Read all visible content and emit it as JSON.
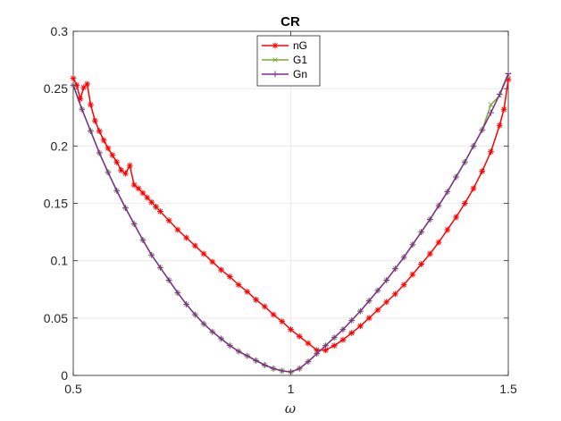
{
  "chart_data": {
    "type": "line",
    "title": "CR",
    "xlabel": "ω",
    "ylabel": "",
    "xlim": [
      0.5,
      1.5
    ],
    "ylim": [
      0,
      0.3
    ],
    "xticks": [
      "0.5",
      "1",
      "1.5"
    ],
    "yticks": [
      "0",
      "0.05",
      "0.1",
      "0.15",
      "0.2",
      "0.25",
      "0.3"
    ],
    "grid": true,
    "legend_position": "top-center",
    "series": [
      {
        "name": "nG",
        "color": "#ff0000",
        "marker": "asterisk",
        "points": [
          [
            0.5,
            0.259
          ],
          [
            0.508,
            0.253
          ],
          [
            0.516,
            0.241
          ],
          [
            0.524,
            0.251
          ],
          [
            0.532,
            0.254
          ],
          [
            0.54,
            0.236
          ],
          [
            0.55,
            0.222
          ],
          [
            0.56,
            0.213
          ],
          [
            0.57,
            0.205
          ],
          [
            0.58,
            0.198
          ],
          [
            0.59,
            0.192
          ],
          [
            0.6,
            0.186
          ],
          [
            0.61,
            0.179
          ],
          [
            0.62,
            0.176
          ],
          [
            0.63,
            0.183
          ],
          [
            0.64,
            0.166
          ],
          [
            0.65,
            0.163
          ],
          [
            0.66,
            0.159
          ],
          [
            0.67,
            0.155
          ],
          [
            0.68,
            0.151
          ],
          [
            0.69,
            0.147
          ],
          [
            0.7,
            0.143
          ],
          [
            0.72,
            0.135
          ],
          [
            0.74,
            0.127
          ],
          [
            0.76,
            0.12
          ],
          [
            0.78,
            0.113
          ],
          [
            0.8,
            0.106
          ],
          [
            0.82,
            0.099
          ],
          [
            0.84,
            0.092
          ],
          [
            0.86,
            0.086
          ],
          [
            0.88,
            0.079
          ],
          [
            0.9,
            0.073
          ],
          [
            0.92,
            0.066
          ],
          [
            0.94,
            0.06
          ],
          [
            0.96,
            0.053
          ],
          [
            0.98,
            0.047
          ],
          [
            1.0,
            0.04
          ],
          [
            1.02,
            0.034
          ],
          [
            1.04,
            0.028
          ],
          [
            1.06,
            0.022
          ],
          [
            1.08,
            0.022
          ],
          [
            1.1,
            0.026
          ],
          [
            1.12,
            0.031
          ],
          [
            1.14,
            0.037
          ],
          [
            1.16,
            0.043
          ],
          [
            1.18,
            0.05
          ],
          [
            1.2,
            0.057
          ],
          [
            1.22,
            0.064
          ],
          [
            1.24,
            0.071
          ],
          [
            1.26,
            0.079
          ],
          [
            1.28,
            0.088
          ],
          [
            1.3,
            0.097
          ],
          [
            1.32,
            0.106
          ],
          [
            1.34,
            0.116
          ],
          [
            1.36,
            0.127
          ],
          [
            1.38,
            0.138
          ],
          [
            1.4,
            0.15
          ],
          [
            1.42,
            0.163
          ],
          [
            1.44,
            0.178
          ],
          [
            1.46,
            0.195
          ],
          [
            1.48,
            0.218
          ],
          [
            1.49,
            0.232
          ],
          [
            1.5,
            0.258
          ]
        ]
      },
      {
        "name": "G1",
        "color": "#77ac30",
        "marker": "cross",
        "points": [
          [
            0.5,
            0.253
          ],
          [
            0.52,
            0.232
          ],
          [
            0.54,
            0.213
          ],
          [
            0.56,
            0.194
          ],
          [
            0.58,
            0.177
          ],
          [
            0.6,
            0.161
          ],
          [
            0.62,
            0.146
          ],
          [
            0.64,
            0.132
          ],
          [
            0.66,
            0.118
          ],
          [
            0.68,
            0.105
          ],
          [
            0.7,
            0.094
          ],
          [
            0.72,
            0.083
          ],
          [
            0.74,
            0.072
          ],
          [
            0.76,
            0.062
          ],
          [
            0.78,
            0.053
          ],
          [
            0.8,
            0.045
          ],
          [
            0.82,
            0.038
          ],
          [
            0.84,
            0.032
          ],
          [
            0.86,
            0.026
          ],
          [
            0.88,
            0.021
          ],
          [
            0.9,
            0.017
          ],
          [
            0.92,
            0.013
          ],
          [
            0.94,
            0.009
          ],
          [
            0.96,
            0.006
          ],
          [
            0.98,
            0.004
          ],
          [
            1.0,
            0.003
          ],
          [
            1.02,
            0.006
          ],
          [
            1.04,
            0.012
          ],
          [
            1.06,
            0.019
          ],
          [
            1.08,
            0.026
          ],
          [
            1.1,
            0.033
          ],
          [
            1.12,
            0.04
          ],
          [
            1.14,
            0.048
          ],
          [
            1.16,
            0.056
          ],
          [
            1.18,
            0.065
          ],
          [
            1.2,
            0.074
          ],
          [
            1.22,
            0.083
          ],
          [
            1.24,
            0.093
          ],
          [
            1.26,
            0.103
          ],
          [
            1.28,
            0.114
          ],
          [
            1.3,
            0.125
          ],
          [
            1.32,
            0.136
          ],
          [
            1.34,
            0.148
          ],
          [
            1.36,
            0.16
          ],
          [
            1.38,
            0.173
          ],
          [
            1.4,
            0.186
          ],
          [
            1.42,
            0.2
          ],
          [
            1.44,
            0.214
          ],
          [
            1.46,
            0.236
          ],
          [
            1.48,
            0.244
          ],
          [
            1.5,
            0.262
          ]
        ]
      },
      {
        "name": "Gn",
        "color": "#7e2f8e",
        "marker": "plus",
        "points": [
          [
            0.5,
            0.253
          ],
          [
            0.52,
            0.232
          ],
          [
            0.54,
            0.213
          ],
          [
            0.56,
            0.194
          ],
          [
            0.58,
            0.177
          ],
          [
            0.6,
            0.161
          ],
          [
            0.62,
            0.146
          ],
          [
            0.64,
            0.132
          ],
          [
            0.66,
            0.118
          ],
          [
            0.68,
            0.105
          ],
          [
            0.7,
            0.094
          ],
          [
            0.72,
            0.083
          ],
          [
            0.74,
            0.072
          ],
          [
            0.76,
            0.062
          ],
          [
            0.78,
            0.053
          ],
          [
            0.8,
            0.045
          ],
          [
            0.82,
            0.038
          ],
          [
            0.84,
            0.032
          ],
          [
            0.86,
            0.026
          ],
          [
            0.88,
            0.021
          ],
          [
            0.9,
            0.017
          ],
          [
            0.92,
            0.013
          ],
          [
            0.94,
            0.009
          ],
          [
            0.96,
            0.006
          ],
          [
            0.98,
            0.004
          ],
          [
            1.0,
            0.003
          ],
          [
            1.02,
            0.006
          ],
          [
            1.04,
            0.012
          ],
          [
            1.06,
            0.019
          ],
          [
            1.08,
            0.026
          ],
          [
            1.1,
            0.033
          ],
          [
            1.12,
            0.04
          ],
          [
            1.14,
            0.048
          ],
          [
            1.16,
            0.056
          ],
          [
            1.18,
            0.065
          ],
          [
            1.2,
            0.074
          ],
          [
            1.22,
            0.083
          ],
          [
            1.24,
            0.093
          ],
          [
            1.26,
            0.103
          ],
          [
            1.28,
            0.114
          ],
          [
            1.3,
            0.125
          ],
          [
            1.32,
            0.136
          ],
          [
            1.34,
            0.148
          ],
          [
            1.36,
            0.16
          ],
          [
            1.38,
            0.173
          ],
          [
            1.4,
            0.186
          ],
          [
            1.42,
            0.2
          ],
          [
            1.44,
            0.214
          ],
          [
            1.46,
            0.229
          ],
          [
            1.48,
            0.245
          ],
          [
            1.5,
            0.263
          ]
        ]
      }
    ]
  }
}
